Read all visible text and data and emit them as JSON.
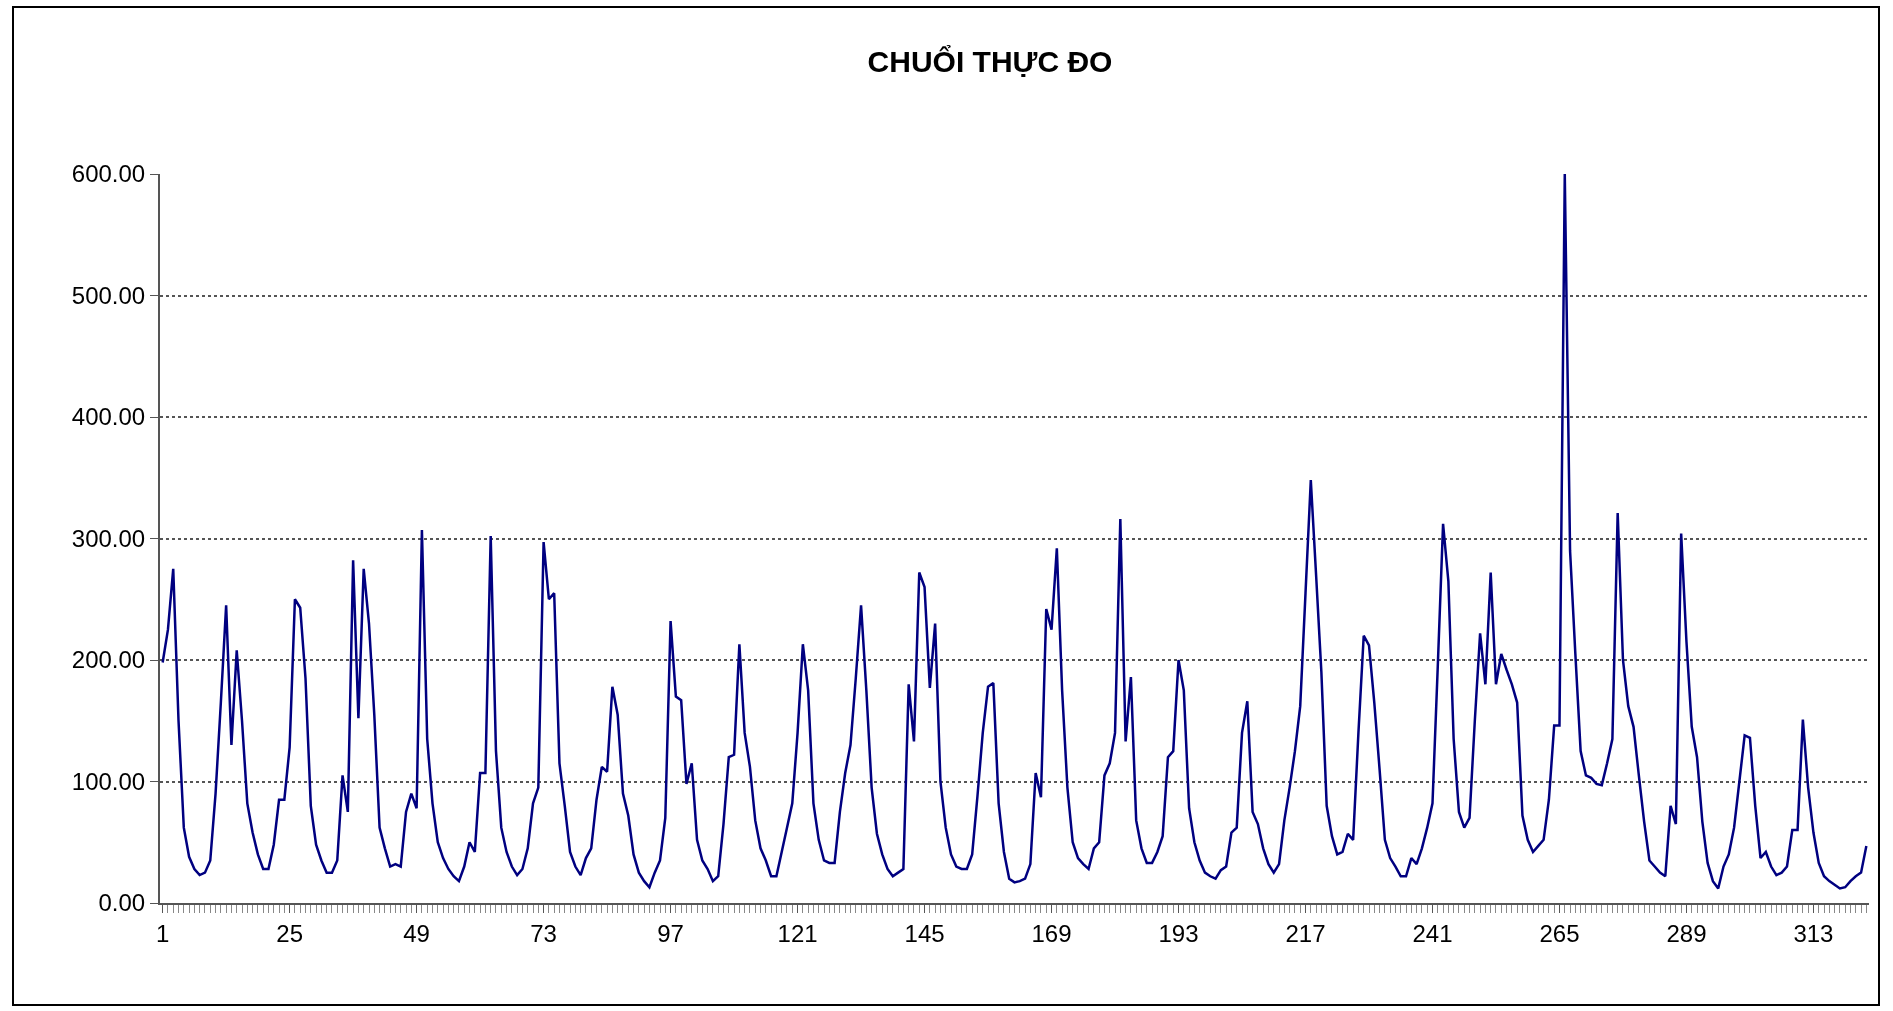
{
  "chart_data": {
    "type": "line",
    "title": "CHUỔI THỰC ĐO",
    "categories": [
      "1",
      null,
      null,
      null,
      null,
      null,
      null,
      null,
      null,
      null,
      null,
      null,
      null,
      null,
      null,
      null,
      null,
      null,
      null,
      null,
      null,
      null,
      null,
      null,
      "25",
      null,
      null,
      null,
      null,
      null,
      null,
      null,
      null,
      null,
      null,
      null,
      null,
      null,
      null,
      null,
      null,
      null,
      null,
      null,
      null,
      null,
      null,
      null,
      "49",
      null,
      null,
      null,
      null,
      null,
      null,
      null,
      null,
      null,
      null,
      null,
      null,
      null,
      null,
      null,
      null,
      null,
      null,
      null,
      null,
      null,
      null,
      null,
      "73",
      null,
      null,
      null,
      null,
      null,
      null,
      null,
      null,
      null,
      null,
      null,
      null,
      null,
      null,
      null,
      null,
      null,
      null,
      null,
      null,
      null,
      null,
      null,
      "97",
      null,
      null,
      null,
      null,
      null,
      null,
      null,
      null,
      null,
      null,
      null,
      null,
      null,
      null,
      null,
      null,
      null,
      null,
      null,
      null,
      null,
      null,
      null,
      "121",
      null,
      null,
      null,
      null,
      null,
      null,
      null,
      null,
      null,
      null,
      null,
      null,
      null,
      null,
      null,
      null,
      null,
      null,
      null,
      null,
      null,
      null,
      null,
      "145",
      null,
      null,
      null,
      null,
      null,
      null,
      null,
      null,
      null,
      null,
      null,
      null,
      null,
      null,
      null,
      null,
      null,
      null,
      null,
      null,
      null,
      null,
      null,
      "169",
      null,
      null,
      null,
      null,
      null,
      null,
      null,
      null,
      null,
      null,
      null,
      null,
      null,
      null,
      null,
      null,
      null,
      null,
      null,
      null,
      null,
      null,
      null,
      "193",
      null,
      null,
      null,
      null,
      null,
      null,
      null,
      null,
      null,
      null,
      null,
      null,
      null,
      null,
      null,
      null,
      null,
      null,
      null,
      null,
      null,
      null,
      null,
      "217",
      null,
      null,
      null,
      null,
      null,
      null,
      null,
      null,
      null,
      null,
      null,
      null,
      null,
      null,
      null,
      null,
      null,
      null,
      null,
      null,
      null,
      null,
      null,
      "241",
      null,
      null,
      null,
      null,
      null,
      null,
      null,
      null,
      null,
      null,
      null,
      null,
      null,
      null,
      null,
      null,
      null,
      null,
      null,
      null,
      null,
      null,
      null,
      "265",
      null,
      null,
      null,
      null,
      null,
      null,
      null,
      null,
      null,
      null,
      null,
      null,
      null,
      null,
      null,
      null,
      null,
      null,
      null,
      null,
      null,
      null,
      null,
      "289",
      null,
      null,
      null,
      null,
      null,
      null,
      null,
      null,
      null,
      null,
      null,
      null,
      null,
      null,
      null,
      null,
      null,
      null,
      null,
      null,
      null,
      null,
      null,
      "313",
      null,
      null,
      null,
      null,
      null,
      null,
      null,
      null,
      null,
      null
    ],
    "series": [
      {
        "color": "#000080",
        "values": [
          198,
          225,
          275,
          150,
          62,
          38,
          28,
          23,
          25,
          35,
          90,
          165,
          245,
          130,
          208,
          150,
          82,
          58,
          40,
          28,
          28,
          48,
          85,
          85,
          128,
          250,
          243,
          185,
          80,
          48,
          35,
          25,
          25,
          35,
          105,
          75,
          282,
          152,
          275,
          230,
          155,
          62,
          45,
          30,
          32,
          30,
          75,
          90,
          78,
          307,
          135,
          82,
          50,
          37,
          28,
          22,
          18,
          30,
          50,
          42,
          107,
          107,
          302,
          125,
          62,
          42,
          30,
          23,
          28,
          45,
          82,
          95,
          297,
          250,
          255,
          115,
          80,
          42,
          30,
          23,
          37,
          45,
          85,
          112,
          108,
          178,
          155,
          90,
          72,
          40,
          25,
          18,
          13,
          25,
          35,
          70,
          232,
          170,
          167,
          98,
          115,
          52,
          35,
          28,
          18,
          22,
          65,
          120,
          122,
          213,
          140,
          112,
          68,
          45,
          35,
          22,
          22,
          42,
          62,
          82,
          140,
          213,
          175,
          82,
          52,
          35,
          33,
          33,
          75,
          107,
          130,
          185,
          245,
          175,
          95,
          57,
          40,
          28,
          22,
          25,
          28,
          180,
          133,
          272,
          260,
          177,
          230,
          100,
          62,
          40,
          30,
          28,
          28,
          40,
          88,
          140,
          178,
          181,
          82,
          42,
          20,
          17,
          18,
          20,
          32,
          107,
          87,
          242,
          225,
          292,
          175,
          95,
          50,
          37,
          32,
          28,
          45,
          50,
          105,
          115,
          140,
          316,
          133,
          186,
          68,
          45,
          33,
          33,
          42,
          55,
          120,
          125,
          200,
          175,
          78,
          50,
          35,
          25,
          22,
          20,
          27,
          30,
          58,
          62,
          140,
          166,
          75,
          65,
          45,
          32,
          25,
          32,
          68,
          95,
          125,
          162,
          255,
          348,
          270,
          190,
          80,
          55,
          40,
          42,
          57,
          52,
          140,
          220,
          212,
          165,
          110,
          52,
          37,
          30,
          22,
          22,
          37,
          32,
          45,
          62,
          82,
          195,
          312,
          265,
          135,
          75,
          62,
          70,
          150,
          222,
          180,
          272,
          180,
          205,
          192,
          180,
          165,
          72,
          52,
          42,
          47,
          52,
          85,
          146,
          146,
          600,
          290,
          205,
          125,
          105,
          103,
          98,
          97,
          115,
          135,
          321,
          200,
          162,
          145,
          105,
          67,
          35,
          30,
          25,
          22,
          80,
          65,
          304,
          215,
          145,
          120,
          67,
          33,
          18,
          12,
          30,
          40,
          62,
          100,
          138,
          136,
          80,
          37,
          42,
          30,
          23,
          25,
          30,
          60,
          60,
          151,
          95,
          58,
          33,
          22,
          18,
          15,
          12,
          13,
          18,
          22,
          25,
          47
        ]
      }
    ],
    "ylim": [
      0,
      600
    ],
    "yticks": [
      {
        "value": 0,
        "label": "0.00"
      },
      {
        "value": 100,
        "label": "100.00"
      },
      {
        "value": 200,
        "label": "200.00"
      },
      {
        "value": 300,
        "label": "300.00"
      },
      {
        "value": 400,
        "label": "400.00"
      },
      {
        "value": 500,
        "label": "500.00"
      },
      {
        "value": 600,
        "label": "600.00"
      }
    ],
    "grid": "y",
    "marker": "none",
    "line_style": "solid"
  }
}
